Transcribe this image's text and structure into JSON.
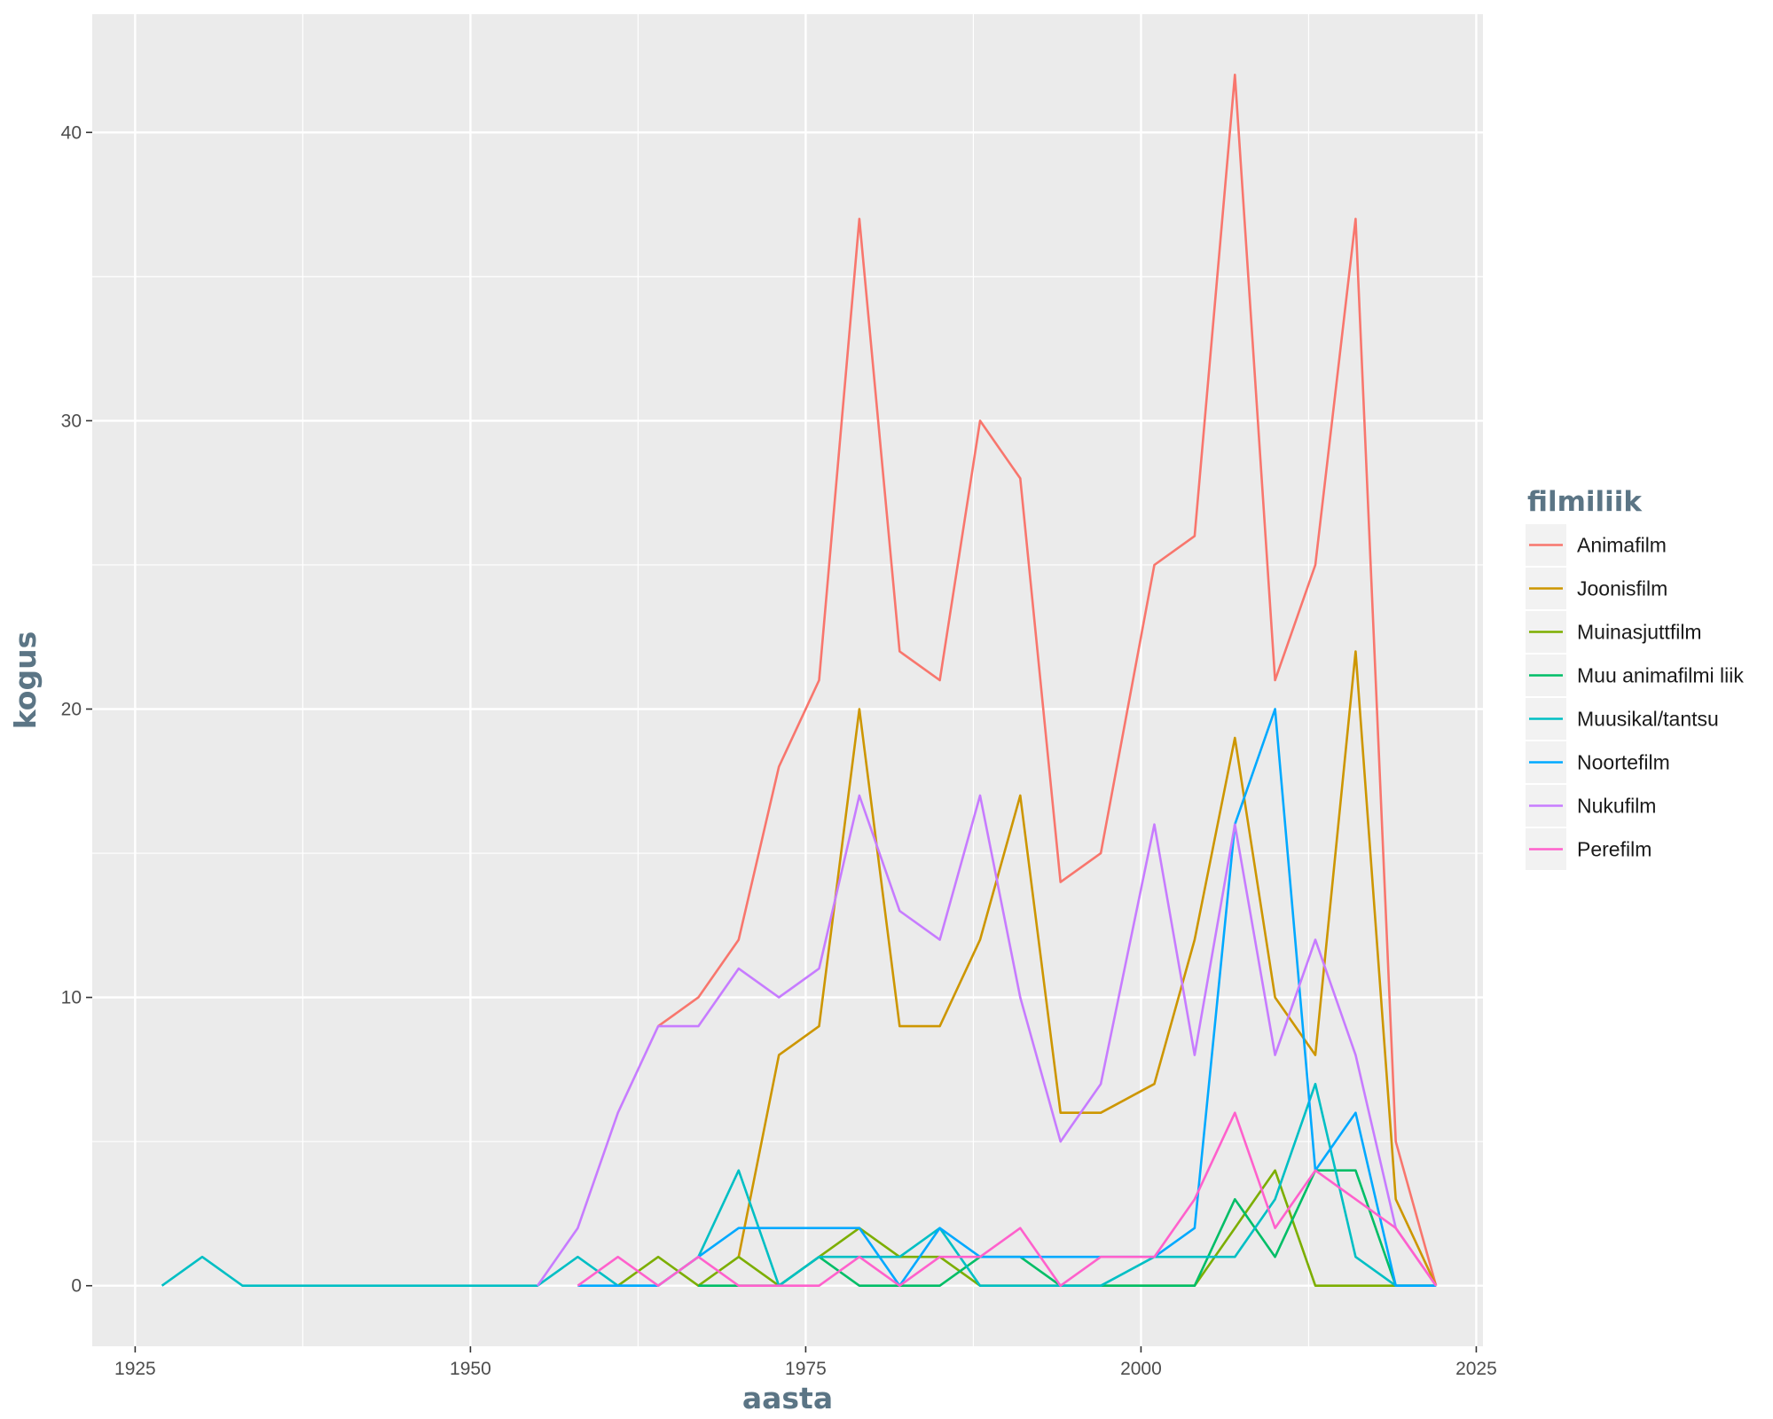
{
  "chart_data": {
    "type": "line",
    "title": "",
    "xlabel": "aasta",
    "ylabel": "kogus",
    "xlim": [
      1921.8,
      2025.5
    ],
    "ylim": [
      -2.1,
      44.1
    ],
    "x_ticks": [
      1925,
      1950,
      1975,
      2000,
      2025
    ],
    "y_ticks": [
      0,
      10,
      20,
      30,
      40
    ],
    "grid": true,
    "legend": {
      "title": "filmiliik",
      "position": "right"
    },
    "x": [
      1927,
      1930,
      1933,
      1936,
      1939,
      1942,
      1945,
      1948,
      1951,
      1955,
      1958,
      1961,
      1964,
      1967,
      1970,
      1973,
      1976,
      1979,
      1982,
      1985,
      1988,
      1991,
      1994,
      1997,
      2001,
      2004,
      2007,
      2010,
      2013,
      2016,
      2019,
      2022
    ],
    "series": [
      {
        "name": "Animafilm",
        "color": "#F8766D",
        "values": [
          null,
          null,
          null,
          null,
          null,
          null,
          null,
          null,
          null,
          null,
          null,
          null,
          9,
          10,
          12,
          18,
          21,
          37,
          22,
          21,
          30,
          28,
          14,
          15,
          25,
          26,
          42,
          21,
          25,
          37,
          5,
          0
        ]
      },
      {
        "name": "Joonisfilm",
        "color": "#CD9600",
        "values": [
          null,
          null,
          null,
          null,
          null,
          null,
          null,
          null,
          null,
          null,
          null,
          null,
          null,
          null,
          1,
          8,
          9,
          20,
          9,
          9,
          12,
          17,
          6,
          6,
          7,
          12,
          19,
          10,
          8,
          22,
          3,
          0
        ]
      },
      {
        "name": "Muinasjuttfilm",
        "color": "#7CAE00",
        "values": [
          null,
          null,
          null,
          null,
          null,
          null,
          null,
          null,
          null,
          null,
          null,
          0,
          1,
          0,
          1,
          0,
          1,
          2,
          1,
          1,
          0,
          0,
          0,
          0,
          0,
          0,
          2,
          4,
          0,
          0,
          0,
          0
        ]
      },
      {
        "name": "Muu animafilmi liik",
        "color": "#00BE67",
        "values": [
          null,
          null,
          null,
          null,
          null,
          null,
          null,
          null,
          null,
          null,
          null,
          null,
          null,
          0,
          0,
          0,
          1,
          0,
          0,
          0,
          1,
          1,
          0,
          0,
          0,
          0,
          3,
          1,
          4,
          4,
          0,
          0
        ]
      },
      {
        "name": "Muusikal/tantsu",
        "color": "#00BFC4",
        "values": [
          0,
          1,
          0,
          0,
          0,
          0,
          0,
          0,
          0,
          0,
          1,
          0,
          0,
          1,
          4,
          0,
          1,
          1,
          1,
          2,
          0,
          0,
          0,
          0,
          1,
          1,
          1,
          3,
          7,
          1,
          0,
          0
        ]
      },
      {
        "name": "Noortefilm",
        "color": "#00A9FF",
        "values": [
          null,
          null,
          null,
          null,
          null,
          null,
          null,
          null,
          null,
          null,
          0,
          0,
          0,
          1,
          2,
          2,
          2,
          2,
          0,
          2,
          1,
          1,
          1,
          1,
          1,
          2,
          16,
          20,
          4,
          6,
          0,
          0
        ]
      },
      {
        "name": "Nukufilm",
        "color": "#C77CFF",
        "values": [
          null,
          null,
          null,
          null,
          null,
          null,
          null,
          null,
          null,
          0,
          2,
          6,
          9,
          9,
          11,
          10,
          11,
          17,
          13,
          12,
          17,
          10,
          5,
          7,
          16,
          8,
          16,
          8,
          12,
          8,
          2,
          0
        ]
      },
      {
        "name": "Perefilm",
        "color": "#FF61CC",
        "values": [
          null,
          null,
          null,
          null,
          null,
          null,
          null,
          null,
          null,
          null,
          0,
          1,
          0,
          1,
          0,
          0,
          0,
          1,
          0,
          1,
          1,
          2,
          0,
          1,
          1,
          3,
          6,
          2,
          4,
          3,
          2,
          0
        ]
      }
    ]
  }
}
